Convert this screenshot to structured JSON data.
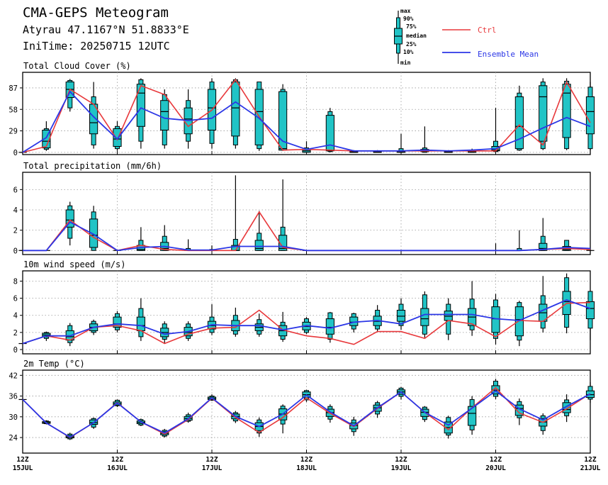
{
  "header": {
    "title": "CMA-GEPS Meteogram",
    "location": "Atyrau 47.1167°N 51.8833°E",
    "init": "IniTime: 20250715 12UTC"
  },
  "legend": {
    "box_labels": [
      "max",
      "90%",
      "75%",
      "median",
      "25%",
      "10%",
      "min"
    ],
    "ctrl_label": "Ctrl",
    "mean_label": "Ensemble Mean",
    "ctrl_color": "#e8383b",
    "mean_color": "#2b36e6",
    "box_fill": "#21c4c6"
  },
  "x_ticks": [
    {
      "top": "12Z",
      "bottom": "15JUL"
    },
    {
      "top": "12Z",
      "bottom": "16JUL"
    },
    {
      "top": "12Z",
      "bottom": "17JUL"
    },
    {
      "top": "12Z",
      "bottom": "18JUL"
    },
    {
      "top": "12Z",
      "bottom": "19JUL"
    },
    {
      "top": "12Z",
      "bottom": "20JUL"
    },
    {
      "top": "12Z",
      "bottom": "21JUL"
    }
  ],
  "chart_data": [
    {
      "type": "box",
      "title": "Total Cloud Cover (%)",
      "x_hours": [
        0,
        6,
        12,
        18,
        24,
        30,
        36,
        42,
        48,
        54,
        60,
        66,
        72,
        78,
        84,
        90,
        96,
        102,
        108,
        114,
        120,
        126,
        132,
        138,
        144
      ],
      "y_ticks": [
        0,
        29,
        58,
        87
      ],
      "ylim": [
        -3,
        108
      ],
      "grid": true,
      "boxes": [
        [
          0,
          0,
          0,
          0,
          0,
          0,
          0
        ],
        [
          2,
          4,
          6,
          15,
          30,
          32,
          42
        ],
        [
          55,
          60,
          74,
          85,
          95,
          97,
          99
        ],
        [
          5,
          10,
          25,
          40,
          65,
          75,
          95
        ],
        [
          2,
          5,
          8,
          18,
          32,
          35,
          42
        ],
        [
          5,
          15,
          35,
          80,
          92,
          98,
          100
        ],
        [
          5,
          10,
          30,
          55,
          70,
          78,
          85
        ],
        [
          5,
          15,
          25,
          45,
          60,
          70,
          85
        ],
        [
          5,
          12,
          30,
          60,
          85,
          95,
          100
        ],
        [
          5,
          10,
          22,
          60,
          95,
          98,
          100
        ],
        [
          2,
          5,
          10,
          55,
          85,
          95,
          95
        ],
        [
          2,
          3,
          3,
          5,
          82,
          85,
          92
        ],
        [
          0,
          0,
          0,
          2,
          4,
          6,
          15
        ],
        [
          0,
          1,
          2,
          3,
          50,
          55,
          60
        ],
        [
          0,
          0,
          0,
          0,
          1,
          2,
          3
        ],
        [
          0,
          0,
          0,
          0,
          1,
          2,
          3
        ],
        [
          0,
          0,
          0,
          1,
          2,
          5,
          25
        ],
        [
          0,
          0,
          1,
          2,
          4,
          6,
          35
        ],
        [
          0,
          0,
          0,
          0,
          1,
          2,
          3
        ],
        [
          0,
          0,
          0,
          1,
          2,
          3,
          5
        ],
        [
          0,
          1,
          2,
          3,
          8,
          15,
          60
        ],
        [
          2,
          3,
          5,
          35,
          75,
          80,
          90
        ],
        [
          3,
          5,
          15,
          75,
          90,
          95,
          100
        ],
        [
          3,
          5,
          20,
          80,
          92,
          96,
          100
        ],
        [
          3,
          5,
          25,
          55,
          75,
          88,
          95
        ]
      ],
      "ctrl": [
        0,
        8,
        85,
        65,
        17,
        90,
        78,
        35,
        57,
        98,
        48,
        3,
        4,
        3,
        2,
        2,
        2,
        2,
        2,
        2,
        2,
        37,
        10,
        95,
        40
      ],
      "mean": [
        0,
        20,
        82,
        48,
        18,
        60,
        46,
        43,
        46,
        68,
        46,
        15,
        4,
        10,
        2,
        2,
        2,
        3,
        2,
        3,
        5,
        18,
        33,
        47,
        35
      ]
    },
    {
      "type": "box",
      "title": "Total precipitation (mm/6h)",
      "x_hours": [
        0,
        6,
        12,
        18,
        24,
        30,
        36,
        42,
        48,
        54,
        60,
        66,
        72,
        78,
        84,
        90,
        96,
        102,
        108,
        114,
        120,
        126,
        132,
        138,
        144
      ],
      "y_ticks": [
        0,
        2,
        4,
        6
      ],
      "ylim": [
        -0.4,
        7.7
      ],
      "grid": true,
      "boxes": [
        [
          0,
          0,
          0,
          0,
          0,
          0,
          0
        ],
        [
          0,
          0,
          0,
          0,
          0,
          0,
          0
        ],
        [
          0.5,
          1.2,
          2.3,
          3.0,
          4.0,
          4.4,
          4.8
        ],
        [
          0,
          0,
          0.3,
          1.5,
          3.1,
          3.8,
          4.4
        ],
        [
          0,
          0,
          0,
          0,
          0,
          0,
          0
        ],
        [
          0,
          0,
          0,
          0.1,
          0.5,
          1.0,
          2.3
        ],
        [
          0,
          0,
          0,
          0.2,
          0.8,
          1.4,
          2.5
        ],
        [
          0,
          0,
          0,
          0,
          0,
          0.2,
          1.1
        ],
        [
          0,
          0,
          0,
          0,
          0,
          0.1,
          0.5
        ],
        [
          0,
          0,
          0,
          0,
          0.5,
          1.1,
          7.4
        ],
        [
          0,
          0,
          0,
          0.2,
          1.0,
          1.7,
          3.9
        ],
        [
          0,
          0,
          0,
          0.2,
          1.5,
          2.3,
          7.0
        ],
        [
          0,
          0,
          0,
          0,
          0,
          0,
          0
        ],
        [
          0,
          0,
          0,
          0,
          0,
          0,
          0
        ],
        [
          0,
          0,
          0,
          0,
          0,
          0,
          0
        ],
        [
          0,
          0,
          0,
          0,
          0,
          0,
          0
        ],
        [
          0,
          0,
          0,
          0,
          0,
          0,
          0
        ],
        [
          0,
          0,
          0,
          0,
          0,
          0,
          0
        ],
        [
          0,
          0,
          0,
          0,
          0,
          0,
          0
        ],
        [
          0,
          0,
          0,
          0,
          0,
          0,
          0
        ],
        [
          0,
          0,
          0,
          0,
          0,
          0,
          0.7
        ],
        [
          0,
          0,
          0,
          0,
          0,
          0.2,
          2.0
        ],
        [
          0,
          0,
          0,
          0.2,
          0.7,
          1.4,
          3.2
        ],
        [
          0,
          0,
          0,
          0.1,
          0.4,
          1.0,
          1.0
        ],
        [
          0,
          0,
          0,
          0,
          0,
          0,
          0
        ]
      ],
      "ctrl": [
        0,
        0,
        3.0,
        1.3,
        0,
        0.5,
        0.1,
        0,
        0,
        0,
        3.8,
        0.3,
        0,
        0,
        0,
        0,
        0,
        0,
        0,
        0,
        0,
        0,
        0.1,
        0.2,
        0.1
      ],
      "mean": [
        0,
        0,
        2.8,
        1.6,
        0,
        0.3,
        0.4,
        0.05,
        0.05,
        0.4,
        0.4,
        0.4,
        0,
        0,
        0,
        0,
        0,
        0,
        0,
        0,
        0,
        0,
        0.1,
        0.3,
        0.2
      ]
    },
    {
      "type": "box",
      "title": "10m wind speed (m/s)",
      "x_hours": [
        0,
        6,
        12,
        18,
        24,
        30,
        36,
        42,
        48,
        54,
        60,
        66,
        72,
        78,
        84,
        90,
        96,
        102,
        108,
        114,
        120,
        126,
        132,
        138,
        144
      ],
      "y_ticks": [
        0,
        2,
        4,
        6,
        8
      ],
      "ylim": [
        -0.5,
        9.2
      ],
      "grid": true,
      "boxes": [
        [
          0.7,
          0.7,
          0.7,
          0.7,
          0.7,
          0.7,
          0.7
        ],
        [
          1.0,
          1.3,
          1.5,
          1.7,
          1.9,
          2.0,
          2.1
        ],
        [
          0.4,
          0.8,
          1.1,
          1.5,
          2.2,
          2.8,
          3.1
        ],
        [
          1.7,
          2.0,
          2.2,
          2.6,
          3.0,
          3.3,
          3.5
        ],
        [
          2.0,
          2.3,
          2.6,
          3.0,
          3.8,
          4.2,
          4.5
        ],
        [
          1.0,
          1.5,
          2.2,
          2.8,
          3.8,
          4.8,
          6.0
        ],
        [
          0.7,
          1.2,
          1.5,
          2.0,
          2.5,
          3.0,
          3.3
        ],
        [
          1.0,
          1.3,
          1.6,
          2.0,
          2.6,
          3.0,
          3.3
        ],
        [
          1.7,
          2.0,
          2.4,
          2.8,
          3.3,
          3.8,
          5.3
        ],
        [
          1.5,
          1.8,
          2.2,
          2.8,
          3.4,
          4.0,
          4.9
        ],
        [
          1.5,
          1.8,
          2.2,
          2.6,
          3.0,
          3.5,
          4.2
        ],
        [
          0.9,
          1.2,
          1.6,
          2.2,
          2.8,
          3.2,
          4.4
        ],
        [
          1.8,
          2.0,
          2.3,
          2.7,
          3.2,
          3.6,
          3.8
        ],
        [
          0.8,
          1.2,
          1.8,
          2.6,
          3.6,
          4.3,
          4.4
        ],
        [
          2.0,
          2.4,
          2.8,
          3.2,
          3.8,
          4.2,
          4.3
        ],
        [
          2.1,
          2.4,
          2.8,
          3.3,
          3.9,
          4.6,
          5.2
        ],
        [
          2.3,
          2.8,
          3.3,
          3.9,
          4.6,
          5.3,
          6.0
        ],
        [
          1.4,
          1.8,
          2.8,
          3.6,
          4.8,
          6.4,
          6.8
        ],
        [
          1.1,
          1.8,
          3.4,
          3.9,
          4.5,
          5.3,
          6.0
        ],
        [
          1.6,
          2.3,
          2.8,
          3.8,
          4.8,
          5.9,
          8.0
        ],
        [
          0.6,
          1.3,
          2.0,
          3.6,
          5.0,
          5.8,
          6.5
        ],
        [
          0.4,
          1.1,
          1.6,
          3.5,
          5.0,
          5.5,
          5.7
        ],
        [
          2.0,
          2.5,
          3.3,
          4.3,
          5.3,
          6.3,
          8.6
        ],
        [
          1.9,
          2.6,
          4.1,
          5.6,
          6.8,
          8.4,
          8.9
        ],
        [
          1.1,
          2.5,
          3.6,
          4.8,
          5.6,
          6.8,
          6.8
        ]
      ],
      "ctrl": [
        0.7,
        1.6,
        1.1,
        2.6,
        2.8,
        2.2,
        0.7,
        1.8,
        2.5,
        2.6,
        4.6,
        2.3,
        1.6,
        1.3,
        0.6,
        2.1,
        2.1,
        1.3,
        3.4,
        3.0,
        1.5,
        3.4,
        3.3,
        5.4,
        5.5
      ],
      "mean": [
        0.7,
        1.6,
        1.6,
        2.6,
        3.0,
        2.8,
        1.8,
        2.1,
        2.9,
        2.8,
        2.8,
        2.3,
        2.8,
        2.5,
        3.2,
        3.4,
        3.0,
        4.1,
        4.1,
        4.1,
        3.6,
        3.4,
        4.6,
        5.8,
        4.8
      ]
    },
    {
      "type": "box",
      "title": "2m Temp (°C)",
      "x_hours": [
        0,
        6,
        12,
        18,
        24,
        30,
        36,
        42,
        48,
        54,
        60,
        66,
        72,
        78,
        84,
        90,
        96,
        102,
        108,
        114,
        120,
        126,
        132,
        138,
        144
      ],
      "y_ticks": [
        24,
        30,
        36,
        42
      ],
      "ylim": [
        19.5,
        43.5
      ],
      "grid": true,
      "boxes": [
        [
          35,
          35,
          35,
          35,
          35,
          35,
          35
        ],
        [
          27.8,
          28,
          28.1,
          28.3,
          28.6,
          28.8,
          29
        ],
        [
          23.3,
          23.6,
          23.9,
          24.2,
          24.6,
          25,
          25.4
        ],
        [
          26.5,
          27,
          27.8,
          28.3,
          29.1,
          29.5,
          29.8
        ],
        [
          32.8,
          33.2,
          33.4,
          33.8,
          34.3,
          34.8,
          35
        ],
        [
          27.3,
          27.6,
          28,
          28.4,
          28.8,
          29.2,
          29.5
        ],
        [
          24,
          24.4,
          24.8,
          25.2,
          25.7,
          26.1,
          26.5
        ],
        [
          28.3,
          28.7,
          29,
          29.5,
          30.1,
          30.6,
          31.2
        ],
        [
          34.6,
          34.8,
          35,
          35.3,
          35.7,
          36,
          36.5
        ],
        [
          28.2,
          28.8,
          29.4,
          30.1,
          30.8,
          31.2,
          31.7
        ],
        [
          24.2,
          25.3,
          26,
          27.2,
          28.3,
          29.1,
          29.8
        ],
        [
          25.2,
          27.9,
          29.1,
          30.8,
          32.3,
          33.1,
          33.6
        ],
        [
          34.3,
          34.9,
          35.5,
          36.4,
          37.2,
          37.6,
          37.8
        ],
        [
          28.3,
          29.3,
          30.1,
          31.2,
          32.2,
          33,
          33.6
        ],
        [
          24.5,
          25.7,
          26.5,
          27.5,
          28.2,
          29.1,
          30
        ],
        [
          29.7,
          30.8,
          31.6,
          32.6,
          33.4,
          34.1,
          34.6
        ],
        [
          35,
          35.9,
          36.5,
          37.2,
          37.8,
          38.3,
          38.6
        ],
        [
          28.5,
          29.2,
          30.1,
          31.3,
          32.2,
          32.8,
          33.1
        ],
        [
          23.7,
          24.7,
          25.3,
          26.9,
          28.5,
          29.8,
          30.3
        ],
        [
          24.8,
          26.2,
          27.5,
          31,
          33,
          35,
          36
        ],
        [
          35.1,
          35.9,
          36.6,
          37.7,
          39,
          40.3,
          41
        ],
        [
          27.6,
          29.7,
          30.4,
          32.4,
          33.4,
          34.4,
          35.3
        ],
        [
          24.8,
          26,
          27.3,
          28.5,
          29.5,
          30.3,
          31
        ],
        [
          28.5,
          30.3,
          31.2,
          32.1,
          34.1,
          34.9,
          36.5
        ],
        [
          34,
          35.1,
          35.6,
          36.4,
          37.5,
          38.8,
          40
        ]
      ],
      "ctrl": [
        35,
        28.2,
        24,
        28.3,
        34.1,
        28.5,
        25,
        29.2,
        35.4,
        29.8,
        25.5,
        29.8,
        35.5,
        31,
        27.2,
        32.4,
        37.2,
        31.3,
        26.3,
        32.6,
        38.4,
        31.1,
        28.4,
        32.3,
        36.7
      ],
      "mean": [
        35,
        28.2,
        24.1,
        28.3,
        34,
        28.5,
        25.3,
        29.4,
        35.5,
        30.1,
        27.2,
        30.8,
        36.3,
        31.4,
        27.4,
        32.6,
        37.2,
        31.3,
        27.6,
        32.5,
        37.5,
        32.3,
        29.1,
        33,
        36.6
      ]
    }
  ]
}
